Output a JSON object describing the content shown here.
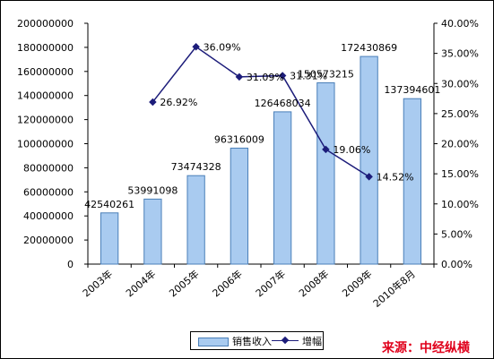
{
  "colors": {
    "bar_fill": "#a9cbf0",
    "bar_stroke": "#4a7fb8",
    "line": "#1c1c7a",
    "source_note": "#e0001b"
  },
  "chart_data": {
    "type": "bar",
    "title": "",
    "categories": [
      "2003年",
      "2004年",
      "2005年",
      "2006年",
      "2007年",
      "2008年",
      "2009年",
      "2010年8月"
    ],
    "series": [
      {
        "name": "销售收入",
        "type": "bar",
        "axis": "left",
        "values": [
          42540261,
          53991098,
          73474328,
          96316009,
          126468034,
          150573215,
          172430869,
          137394601
        ],
        "labels": [
          "42540261",
          "53991098",
          "73474328",
          "96316009",
          "126468034",
          "150573215",
          "172430869",
          "137394601"
        ]
      },
      {
        "name": "增幅",
        "type": "line",
        "axis": "right",
        "values": [
          null,
          26.92,
          36.09,
          31.09,
          31.31,
          19.06,
          14.52,
          null
        ],
        "labels": [
          "",
          "26.92%",
          "36.09%",
          "31.09%",
          "31.31%",
          "19.06%",
          "14.52%",
          ""
        ]
      }
    ],
    "y_left": {
      "min": 0,
      "max": 200000000,
      "step": 20000000,
      "ticks": [
        "0",
        "20000000",
        "40000000",
        "60000000",
        "80000000",
        "100000000",
        "120000000",
        "140000000",
        "160000000",
        "180000000",
        "200000000"
      ]
    },
    "y_right": {
      "min": 0,
      "max": 40,
      "step": 5,
      "ticks": [
        "0.00%",
        "5.00%",
        "10.00%",
        "15.00%",
        "20.00%",
        "25.00%",
        "30.00%",
        "35.00%",
        "40.00%"
      ]
    },
    "legend_position": "bottom",
    "grid": false
  },
  "source_note": "来源：中经纵横"
}
